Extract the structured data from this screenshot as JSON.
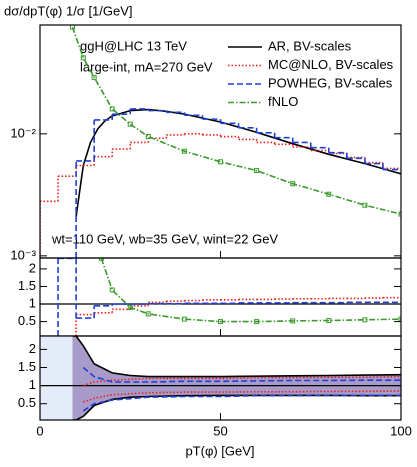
{
  "chart_data": [
    {
      "type": "line",
      "title": "dσ/dpT(φ) 1/σ  [1/GeV]",
      "log_y": true,
      "annotations": [
        "ggH@LHC 13 TeV",
        "large-int, mA=270 GeV",
        "wt=110 GeV, wb=35 GeV, wint=22 GeV"
      ],
      "xlim": [
        0,
        100
      ],
      "xticks": [
        0,
        50,
        100
      ],
      "ylim": [
        0.00096,
        0.078
      ],
      "yticks": [
        {
          "value": 0.001,
          "label": "10⁻³"
        },
        {
          "value": 0.01,
          "label": "10⁻²"
        }
      ],
      "legend": "upper right",
      "series": [
        {
          "name": "AR, BV-scales",
          "color": "#000000",
          "dash": "solid",
          "type": "line",
          "x": [
            10,
            12,
            14,
            16,
            18,
            20,
            25,
            30,
            35,
            40,
            50,
            60,
            70,
            80,
            90,
            100
          ],
          "values": [
            0.0021,
            0.0055,
            0.0085,
            0.011,
            0.0128,
            0.014,
            0.0155,
            0.0158,
            0.0153,
            0.0145,
            0.0125,
            0.0103,
            0.0083,
            0.0068,
            0.0057,
            0.0047
          ]
        },
        {
          "name": "MC@NLO, BV-scales",
          "color": "#e8201a",
          "dash": "dot",
          "type": "step",
          "bins": [
            0,
            5,
            10,
            15,
            20,
            25,
            30,
            35,
            40,
            45,
            50,
            55,
            60,
            65,
            70,
            75,
            80,
            85,
            90,
            95,
            100
          ],
          "values": [
            0.0028,
            0.0045,
            0.0055,
            0.0065,
            0.0075,
            0.0085,
            0.0092,
            0.0098,
            0.01,
            0.0098,
            0.0095,
            0.009,
            0.0085,
            0.0082,
            0.0078,
            0.0073,
            0.0069,
            0.0064,
            0.0058,
            0.0052
          ]
        },
        {
          "name": "POWHEG, BV-scales",
          "color": "#1f3fd6",
          "dash": "dash",
          "type": "step",
          "bins": [
            0,
            5,
            10,
            15,
            20,
            25,
            30,
            35,
            40,
            45,
            50,
            55,
            60,
            65,
            70,
            75,
            80,
            85,
            90,
            95,
            100
          ],
          "values": [
            null,
            null,
            0.006,
            0.013,
            0.0145,
            0.016,
            0.0155,
            0.015,
            0.0142,
            0.0132,
            0.0122,
            0.0112,
            0.0102,
            0.0093,
            0.0085,
            0.0077,
            0.007,
            0.0063,
            0.0057,
            0.0051
          ]
        },
        {
          "name": "fNLO",
          "color": "#3a9a2a",
          "dash": "dashdot",
          "type": "line",
          "marker": "square",
          "x": [
            9,
            12,
            15,
            20,
            25,
            30,
            40,
            50,
            60,
            70,
            80,
            90,
            100
          ],
          "values": [
            0.075,
            0.042,
            0.029,
            0.016,
            0.012,
            0.0095,
            0.0072,
            0.0059,
            0.005,
            0.0039,
            0.0032,
            0.0026,
            0.0022
          ]
        }
      ]
    },
    {
      "type": "line",
      "xlim": [
        0,
        100
      ],
      "xticks": [
        0,
        50,
        100
      ],
      "ylim": [
        0.09,
        2.31
      ],
      "yticks": [
        0.5,
        1,
        1.5,
        2
      ],
      "reference": 1,
      "series": [
        {
          "color": "#e8201a",
          "dash": "dot",
          "type": "step",
          "bins": [
            0,
            5,
            10,
            15,
            20,
            25,
            30,
            35,
            40,
            45,
            50,
            55,
            60,
            65,
            70,
            75,
            80,
            85,
            90,
            95,
            100
          ],
          "values": [
            null,
            null,
            0.7,
            0.75,
            0.85,
            0.95,
            1.05,
            1.08,
            1.1,
            1.12,
            1.12,
            1.13,
            1.13,
            1.14,
            1.15,
            1.15,
            1.16,
            1.16,
            1.17,
            1.18
          ]
        },
        {
          "color": "#1f3fd6",
          "dash": "dash",
          "type": "step",
          "bins": [
            0,
            5,
            10,
            15,
            20,
            25,
            30,
            35,
            40,
            45,
            50,
            55,
            60,
            65,
            70,
            75,
            80,
            85,
            90,
            95,
            100
          ],
          "values": [
            null,
            2.3,
            0.6,
            0.95,
            1.0,
            1.0,
            1.01,
            1.01,
            1.02,
            1.02,
            1.02,
            1.03,
            1.03,
            1.03,
            1.04,
            1.04,
            1.04,
            1.05,
            1.05,
            1.05
          ]
        },
        {
          "color": "#3a9a2a",
          "dash": "dashdot",
          "type": "line",
          "marker": "square",
          "x": [
            17,
            20,
            25,
            30,
            40,
            50,
            60,
            70,
            80,
            90,
            100
          ],
          "values": [
            2.3,
            1.4,
            0.9,
            0.72,
            0.57,
            0.5,
            0.5,
            0.52,
            0.53,
            0.55,
            0.57
          ]
        }
      ]
    },
    {
      "type": "line",
      "xlim": [
        0,
        100
      ],
      "xticks": [
        0,
        50,
        100
      ],
      "xlabel": "pT(φ) [GeV]",
      "ylim": [
        0.05,
        2.37
      ],
      "yticks": [
        0.5,
        1,
        1.5,
        2
      ],
      "reference": 1,
      "series": [
        {
          "color": "#e3ecf8",
          "type": "band",
          "x": [
            0,
            10
          ],
          "upper": [
            2.37,
            2.37
          ],
          "lower": [
            0.05,
            0.05
          ]
        },
        {
          "color": "#a99bc9",
          "edge": "#000000",
          "type": "band",
          "x": [
            9,
            10,
            12,
            15,
            20,
            25,
            30,
            40,
            50,
            60,
            70,
            80,
            90,
            100
          ],
          "upper": [
            2.37,
            2.37,
            2.1,
            1.6,
            1.35,
            1.28,
            1.25,
            1.25,
            1.25,
            1.26,
            1.27,
            1.28,
            1.29,
            1.3
          ],
          "lower": [
            0.05,
            0.05,
            0.15,
            0.45,
            0.62,
            0.68,
            0.7,
            0.72,
            0.73,
            0.73,
            0.73,
            0.73,
            0.72,
            0.72
          ]
        },
        {
          "color": "#e8201a",
          "dash": "dot",
          "type": "bandlines",
          "x": [
            12,
            15,
            20,
            30,
            40,
            50,
            60,
            70,
            80,
            90,
            100
          ],
          "upper": [
            1.0,
            1.1,
            1.15,
            1.2,
            1.2,
            1.2,
            1.22,
            1.22,
            1.23,
            1.23,
            1.25
          ],
          "lower": [
            0.55,
            0.65,
            0.75,
            0.8,
            0.82,
            0.82,
            0.83,
            0.83,
            0.84,
            0.84,
            0.85
          ]
        },
        {
          "color": "#1f3fd6",
          "dash": "dash",
          "type": "bandlines",
          "x": [
            12,
            15,
            20,
            30,
            40,
            50,
            60,
            70,
            80,
            90,
            100
          ],
          "upper": [
            1.5,
            1.25,
            1.1,
            1.1,
            1.12,
            1.12,
            1.13,
            1.14,
            1.14,
            1.15,
            1.15
          ],
          "lower": [
            0.3,
            0.5,
            0.6,
            0.68,
            0.7,
            0.7,
            0.72,
            0.72,
            0.73,
            0.73,
            0.73
          ]
        }
      ]
    }
  ]
}
